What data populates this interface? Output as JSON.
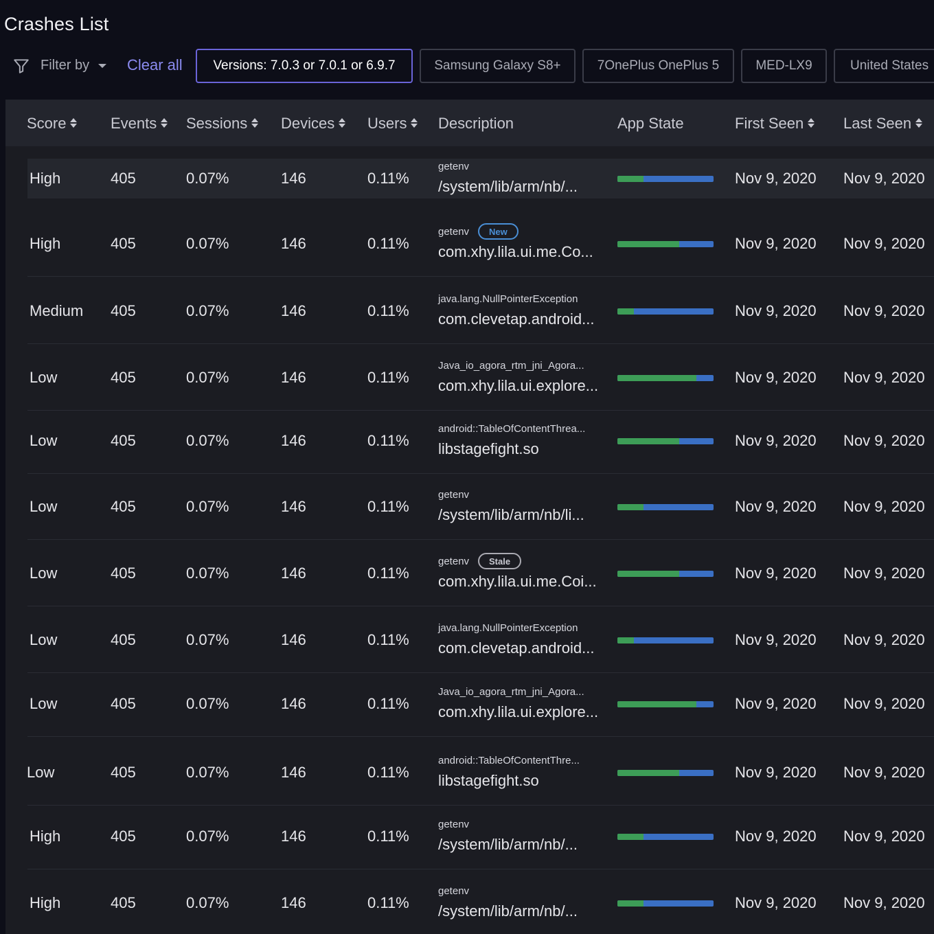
{
  "title": "Crashes List",
  "filters": {
    "label": "Filter by",
    "clear_all": "Clear all",
    "chips": [
      "Versions: 7.0.3 or 7.0.1 or 6.9.7",
      "Samsung Galaxy S8+",
      "7OnePlus OnePlus 5",
      "MED-LX9",
      "United States"
    ]
  },
  "columns": {
    "score": "Score",
    "events": "Events",
    "sessions": "Sessions",
    "devices": "Devices",
    "users": "Users",
    "description": "Description",
    "app_state": "App State",
    "first_seen": "First Seen",
    "last_seen": "Last Seen"
  },
  "rows": [
    {
      "score": "High",
      "events": "405",
      "sessions": "0.07%",
      "devices": "146",
      "users": "0.11%",
      "desc_top": "getenv",
      "desc_main": "/system/lib/arm/nb/...",
      "badge": "",
      "foreground": 0.27,
      "first_seen": "Nov 9, 2020",
      "last_seen": "Nov 9, 2020"
    },
    {
      "score": "High",
      "events": "405",
      "sessions": "0.07%",
      "devices": "146",
      "users": "0.11%",
      "desc_top": "getenv",
      "desc_main": "com.xhy.lila.ui.me.Co...",
      "badge": "New",
      "foreground": 0.64,
      "first_seen": "Nov 9, 2020",
      "last_seen": "Nov 9, 2020"
    },
    {
      "score": "Medium",
      "events": "405",
      "sessions": "0.07%",
      "devices": "146",
      "users": "0.11%",
      "desc_top": "java.lang.NullPointerException",
      "desc_main": "com.clevetap.android...",
      "badge": "",
      "foreground": 0.17,
      "first_seen": "Nov 9, 2020",
      "last_seen": "Nov 9, 2020"
    },
    {
      "score": "Low",
      "events": "405",
      "sessions": "0.07%",
      "devices": "146",
      "users": "0.11%",
      "desc_top": "Java_io_agora_rtm_jni_Agora...",
      "desc_main": "com.xhy.lila.ui.explore...",
      "badge": "",
      "foreground": 0.82,
      "first_seen": "Nov 9, 2020",
      "last_seen": "Nov 9, 2020"
    },
    {
      "score": "Low",
      "events": "405",
      "sessions": "0.07%",
      "devices": "146",
      "users": "0.11%",
      "desc_top": "android::TableOfContentThrea...",
      "desc_main": "libstagefight.so",
      "badge": "",
      "foreground": 0.64,
      "first_seen": "Nov 9, 2020",
      "last_seen": "Nov 9, 2020"
    },
    {
      "score": "Low",
      "events": "405",
      "sessions": "0.07%",
      "devices": "146",
      "users": "0.11%",
      "desc_top": "getenv",
      "desc_main": "/system/lib/arm/nb/li...",
      "badge": "",
      "foreground": 0.27,
      "first_seen": "Nov 9, 2020",
      "last_seen": "Nov 9, 2020"
    },
    {
      "score": "Low",
      "events": "405",
      "sessions": "0.07%",
      "devices": "146",
      "users": "0.11%",
      "desc_top": "getenv",
      "desc_main": "com.xhy.lila.ui.me.Coi...",
      "badge": "Stale",
      "foreground": 0.64,
      "first_seen": "Nov 9, 2020",
      "last_seen": "Nov 9, 2020"
    },
    {
      "score": "Low",
      "events": "405",
      "sessions": "0.07%",
      "devices": "146",
      "users": "0.11%",
      "desc_top": "java.lang.NullPointerException",
      "desc_main": "com.clevetap.android...",
      "badge": "",
      "foreground": 0.17,
      "first_seen": "Nov 9, 2020",
      "last_seen": "Nov 9, 2020"
    },
    {
      "score": "Low",
      "events": "405",
      "sessions": "0.07%",
      "devices": "146",
      "users": "0.11%",
      "desc_top": "Java_io_agora_rtm_jni_Agora...",
      "desc_main": "com.xhy.lila.ui.explore...",
      "badge": "",
      "foreground": 0.82,
      "first_seen": "Nov 9, 2020",
      "last_seen": "Nov 9, 2020"
    },
    {
      "score": "Low",
      "events": "405",
      "sessions": "0.07%",
      "devices": "146",
      "users": "0.11%",
      "desc_top": "android::TableOfContentThre...",
      "desc_main": "libstagefight.so",
      "badge": "",
      "foreground": 0.64,
      "first_seen": "Nov 9, 2020",
      "last_seen": "Nov 9, 2020"
    },
    {
      "score": "High",
      "events": "405",
      "sessions": "0.07%",
      "devices": "146",
      "users": "0.11%",
      "desc_top": "getenv",
      "desc_main": "/system/lib/arm/nb/...",
      "badge": "",
      "foreground": 0.27,
      "first_seen": "Nov 9, 2020",
      "last_seen": "Nov 9, 2020"
    },
    {
      "score": "High",
      "events": "405",
      "sessions": "0.07%",
      "devices": "146",
      "users": "0.11%",
      "desc_top": "getenv",
      "desc_main": "/system/lib/arm/nb/...",
      "badge": "",
      "foreground": 0.27,
      "first_seen": "Nov 9, 2020",
      "last_seen": "Nov 9, 2020"
    }
  ],
  "colors": {
    "background": "#0d0e18",
    "table_bg": "#1b1c22",
    "header_bg": "#23252d",
    "accent": "#6a64d8",
    "bar_foreground": "#3d9d57",
    "bar_background": "#3a6fc4",
    "badge_new": "#4a8fd6"
  }
}
